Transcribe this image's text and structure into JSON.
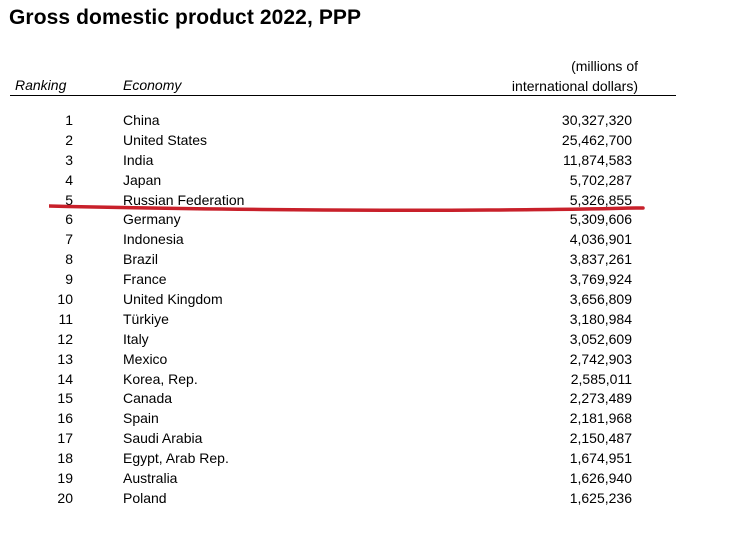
{
  "title": "Gross domestic product 2022, PPP",
  "header": {
    "ranking": "Ranking",
    "economy": "Economy",
    "units_line1": "(millions of",
    "units_line2": "international dollars)"
  },
  "highlight": {
    "row_rank": "5",
    "color": "#c8202a"
  },
  "rows": [
    {
      "rank": "1",
      "economy": "China",
      "value": "30,327,320"
    },
    {
      "rank": "2",
      "economy": "United States",
      "value": "25,462,700"
    },
    {
      "rank": "3",
      "economy": "India",
      "value": "11,874,583"
    },
    {
      "rank": "4",
      "economy": "Japan",
      "value": "5,702,287"
    },
    {
      "rank": "5",
      "economy": "Russian Federation",
      "value": "5,326,855"
    },
    {
      "rank": "6",
      "economy": "Germany",
      "value": "5,309,606"
    },
    {
      "rank": "7",
      "economy": "Indonesia",
      "value": "4,036,901"
    },
    {
      "rank": "8",
      "economy": "Brazil",
      "value": "3,837,261"
    },
    {
      "rank": "9",
      "economy": "France",
      "value": "3,769,924"
    },
    {
      "rank": "10",
      "economy": "United Kingdom",
      "value": "3,656,809"
    },
    {
      "rank": "11",
      "economy": "Türkiye",
      "value": "3,180,984"
    },
    {
      "rank": "12",
      "economy": "Italy",
      "value": "3,052,609"
    },
    {
      "rank": "13",
      "economy": "Mexico",
      "value": "2,742,903"
    },
    {
      "rank": "14",
      "economy": "Korea, Rep.",
      "value": "2,585,011"
    },
    {
      "rank": "15",
      "economy": "Canada",
      "value": "2,273,489"
    },
    {
      "rank": "16",
      "economy": "Spain",
      "value": "2,181,968"
    },
    {
      "rank": "17",
      "economy": "Saudi Arabia",
      "value": "2,150,487"
    },
    {
      "rank": "18",
      "economy": "Egypt, Arab Rep.",
      "value": "1,674,951"
    },
    {
      "rank": "19",
      "economy": "Australia",
      "value": "1,626,940"
    },
    {
      "rank": "20",
      "economy": "Poland",
      "value": "1,625,236"
    }
  ]
}
